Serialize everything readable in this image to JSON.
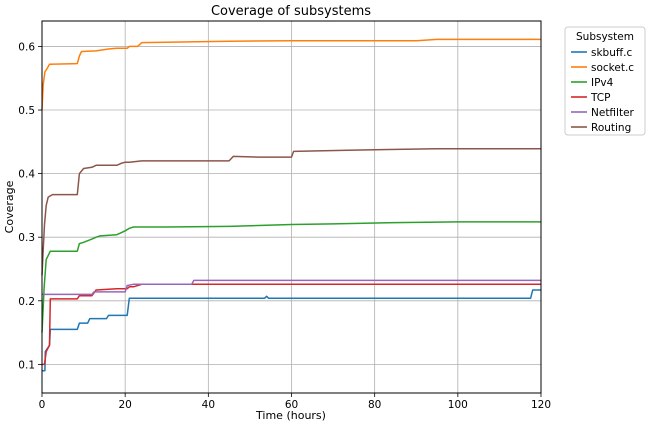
{
  "chart_data": {
    "type": "line",
    "title": "Coverage of subsystems",
    "xlabel": "Time (hours)",
    "ylabel": "Coverage",
    "xlim": [
      0,
      120
    ],
    "ylim": [
      0.055,
      0.64
    ],
    "xticks": [
      0,
      20,
      40,
      60,
      80,
      100,
      120
    ],
    "yticks": [
      0.1,
      0.2,
      0.3,
      0.4,
      0.5,
      0.6
    ],
    "grid": true,
    "legend": {
      "title": "Subsystem",
      "placement": "outside upper right"
    },
    "series": [
      {
        "name": "skbuff.c",
        "color": "#1f77b4",
        "x": [
          0,
          0.7,
          0.8,
          1.8,
          2,
          8.5,
          9,
          11,
          11.5,
          15.5,
          16,
          20.5,
          21,
          53.5,
          54,
          54.5,
          117.5,
          118,
          120
        ],
        "y": [
          0.09,
          0.09,
          0.12,
          0.13,
          0.155,
          0.155,
          0.165,
          0.165,
          0.172,
          0.172,
          0.177,
          0.177,
          0.204,
          0.204,
          0.207,
          0.204,
          0.204,
          0.217,
          0.217
        ]
      },
      {
        "name": "socket.c",
        "color": "#ff7f0e",
        "x": [
          0,
          0.3,
          0.7,
          1.2,
          1.8,
          8.5,
          9,
          9.5,
          13,
          16,
          18,
          20.5,
          21,
          23,
          24,
          45,
          60,
          90,
          95,
          120
        ],
        "y": [
          0.5,
          0.54,
          0.56,
          0.565,
          0.572,
          0.573,
          0.585,
          0.592,
          0.593,
          0.596,
          0.597,
          0.597,
          0.6,
          0.6,
          0.606,
          0.608,
          0.609,
          0.609,
          0.611,
          0.611
        ]
      },
      {
        "name": "IPv4",
        "color": "#2ca02c",
        "x": [
          0,
          0.5,
          1,
          2,
          8.5,
          9,
          10,
          12,
          13,
          14,
          18,
          19,
          20,
          21,
          22,
          30,
          45,
          60,
          70,
          85,
          100,
          120
        ],
        "y": [
          0.15,
          0.22,
          0.265,
          0.278,
          0.278,
          0.29,
          0.292,
          0.297,
          0.3,
          0.302,
          0.304,
          0.307,
          0.31,
          0.314,
          0.316,
          0.316,
          0.317,
          0.32,
          0.321,
          0.323,
          0.324,
          0.324
        ]
      },
      {
        "name": "TCP",
        "color": "#d62728",
        "x": [
          0,
          0.6,
          1,
          1.8,
          2,
          8.5,
          9,
          12,
          13,
          18,
          20.5,
          21,
          22,
          24,
          120
        ],
        "y": [
          0.1,
          0.1,
          0.12,
          0.13,
          0.203,
          0.203,
          0.208,
          0.208,
          0.217,
          0.219,
          0.219,
          0.222,
          0.222,
          0.226,
          0.226
        ]
      },
      {
        "name": "Netfilter",
        "color": "#9467bd",
        "x": [
          0,
          0.8,
          9,
          9.5,
          12,
          12.5,
          20,
          20.5,
          22,
          36,
          36.5,
          120
        ],
        "y": [
          0.21,
          0.21,
          0.21,
          0.21,
          0.21,
          0.214,
          0.214,
          0.224,
          0.226,
          0.226,
          0.232,
          0.232
        ]
      },
      {
        "name": "Routing",
        "color": "#8c564b",
        "x": [
          0,
          0.3,
          0.6,
          1,
          1.5,
          2.5,
          8.5,
          9,
          10,
          12,
          13,
          18,
          19,
          20,
          21,
          24,
          45,
          46,
          52,
          60,
          60.5,
          75,
          95,
          120
        ],
        "y": [
          0.24,
          0.28,
          0.32,
          0.35,
          0.363,
          0.367,
          0.367,
          0.4,
          0.408,
          0.41,
          0.413,
          0.413,
          0.416,
          0.418,
          0.418,
          0.42,
          0.42,
          0.427,
          0.426,
          0.426,
          0.435,
          0.437,
          0.439,
          0.439
        ]
      }
    ]
  }
}
